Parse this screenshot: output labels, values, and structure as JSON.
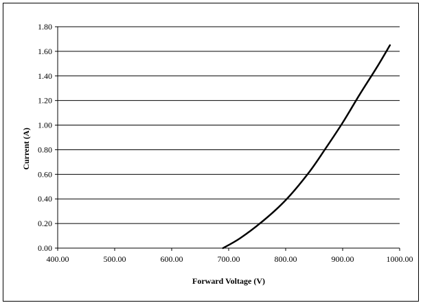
{
  "chart_data": {
    "type": "line",
    "title": "",
    "xlabel": "Forward Voltage (V)",
    "ylabel": "Current (A)",
    "xlim": [
      400,
      1000
    ],
    "ylim": [
      0,
      1.8
    ],
    "x_ticks": [
      "400.00",
      "500.00",
      "600.00",
      "700.00",
      "800.00",
      "900.00",
      "1000.00"
    ],
    "y_ticks": [
      "0.00",
      "0.20",
      "0.40",
      "0.60",
      "0.80",
      "1.00",
      "1.20",
      "1.40",
      "1.60",
      "1.80"
    ],
    "grid": "horizontal",
    "legend": "none",
    "line_color": "#000000",
    "series": [
      {
        "x": [
          690,
          720,
          760,
          800,
          840,
          870,
          900,
          930,
          960,
          983
        ],
        "y": [
          0.0,
          0.08,
          0.22,
          0.39,
          0.61,
          0.81,
          1.02,
          1.25,
          1.47,
          1.65
        ]
      }
    ]
  }
}
